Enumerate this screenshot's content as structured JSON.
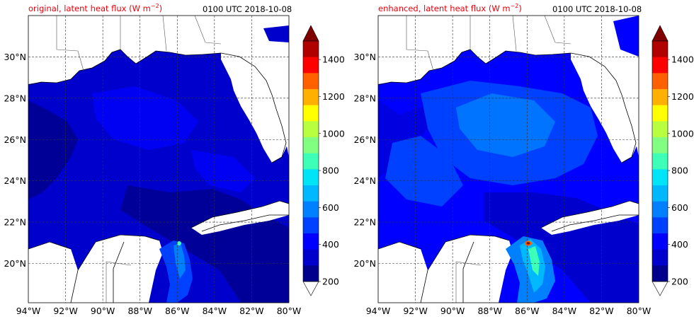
{
  "panels": [
    {
      "title_left": "original, latent heat flux (W m",
      "title_sup": "−2",
      "title_close": ")",
      "timestamp": "0100 UTC 2018-10-08"
    },
    {
      "title_left": "enhanced, latent heat flux (W m",
      "title_sup": "−2",
      "title_close": ")",
      "timestamp": "0100 UTC 2018-10-08"
    }
  ],
  "map": {
    "lon_ticks": [
      "94°W",
      "92°W",
      "90°W",
      "88°W",
      "86°W",
      "84°W",
      "82°W",
      "80°W"
    ],
    "lat_ticks": [
      "30°N",
      "28°N",
      "26°N",
      "24°N",
      "22°N",
      "20°N"
    ],
    "lon_range": [
      -94,
      -80
    ],
    "lat_range": [
      18.1,
      32.0
    ],
    "gridlines": true
  },
  "colorbar": {
    "tick_labels": [
      "1400",
      "1200",
      "1000",
      "800",
      "600",
      "400",
      "200"
    ],
    "levels": [
      200,
      300,
      400,
      500,
      600,
      700,
      800,
      900,
      1000,
      1100,
      1200,
      1300,
      1400,
      1500
    ],
    "colors": [
      "#00008c",
      "#0000cd",
      "#0000ff",
      "#0040ff",
      "#0080ff",
      "#00b8ff",
      "#00e4f8",
      "#3dffb8",
      "#80ff80",
      "#b8ff40",
      "#ffff00",
      "#ffb000",
      "#ff6000",
      "#ff0000",
      "#b00000"
    ],
    "extend": "both",
    "under_color": "#ffffff",
    "over_color": "#800000"
  },
  "colors": {
    "land": "#ffffff",
    "coast": "#000000",
    "title_accent": "#e8000b"
  }
}
